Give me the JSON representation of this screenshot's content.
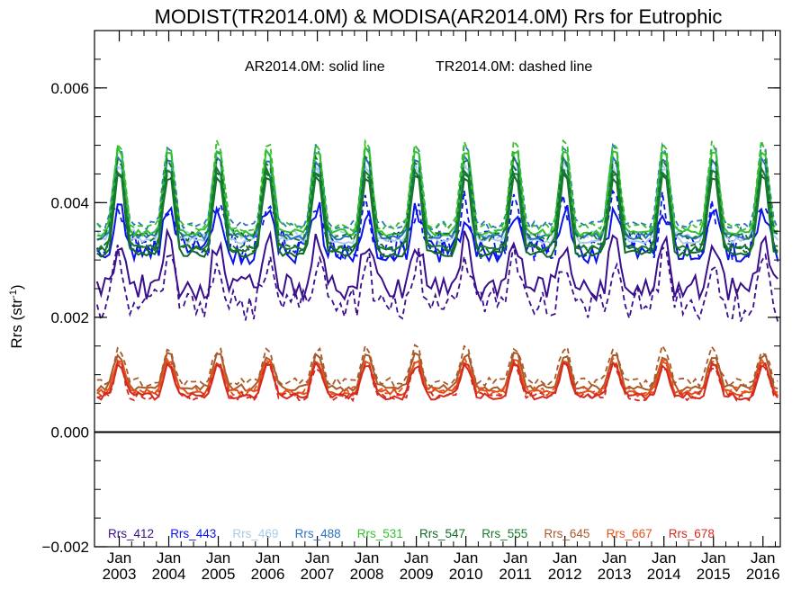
{
  "chart_data": {
    "type": "line",
    "title": "MODIST(TR2014.0M) & MODISA(AR2014.0M)  Rrs for Eutrophic",
    "subtitle_solid": "AR2014.0M: solid line",
    "subtitle_dashed": "TR2014.0M: dashed line",
    "ylabel": "Rrs (str",
    "ylabel_sup": "-1",
    "ylabel_close": ")",
    "ylim": [
      -0.002,
      0.007
    ],
    "xlim": [
      2002.5,
      2016.35
    ],
    "yticks": [
      -0.002,
      0.0,
      0.002,
      0.004,
      0.006
    ],
    "ytick_labels": [
      "−0.002",
      "0.000",
      "0.002",
      "0.004",
      "0.006"
    ],
    "xticks": [
      {
        "year": 2003,
        "line1": "Jan",
        "line2": "2003"
      },
      {
        "year": 2004,
        "line1": "Jan",
        "line2": "2004"
      },
      {
        "year": 2005,
        "line1": "Jan",
        "line2": "2005"
      },
      {
        "year": 2006,
        "line1": "Jan",
        "line2": "2006"
      },
      {
        "year": 2007,
        "line1": "Jan",
        "line2": "2007"
      },
      {
        "year": 2008,
        "line1": "Jan",
        "line2": "2008"
      },
      {
        "year": 2009,
        "line1": "Jan",
        "line2": "2009"
      },
      {
        "year": 2010,
        "line1": "Jan",
        "line2": "2010"
      },
      {
        "year": 2011,
        "line1": "Jan",
        "line2": "2011"
      },
      {
        "year": 2012,
        "line1": "Jan",
        "line2": "2012"
      },
      {
        "year": 2013,
        "line1": "Jan",
        "line2": "2013"
      },
      {
        "year": 2014,
        "line1": "Jan",
        "line2": "2014"
      },
      {
        "year": 2015,
        "line1": "Jan",
        "line2": "2015"
      },
      {
        "year": 2016,
        "line1": "Jan",
        "line2": "2016"
      }
    ],
    "zero_line": 0.0,
    "grid": false,
    "legend_placement": "bottom",
    "series_style": {
      "AR2014.0M": "solid",
      "TR2014.0M": "dashed"
    },
    "bands": [
      {
        "name": "Rrs_412",
        "color": "#3a0f8c",
        "base": 0.0028,
        "amp": 0.0008,
        "tr_offset": -0.0003
      },
      {
        "name": "Rrs_443",
        "color": "#0a14e6",
        "base": 0.0034,
        "amp": 0.0007,
        "tr_offset": 0.0001
      },
      {
        "name": "Rrs_469",
        "color": "#a8cce8",
        "base": 0.0038,
        "amp": 0.0013,
        "tr_offset": 0.0001
      },
      {
        "name": "Rrs_488",
        "color": "#2a73c6",
        "base": 0.0039,
        "amp": 0.0014,
        "tr_offset": 0.0002
      },
      {
        "name": "Rrs_531",
        "color": "#33c12d",
        "base": 0.004,
        "amp": 0.0015,
        "tr_offset": 0.0001
      },
      {
        "name": "Rrs_547",
        "color": "#0e6b27",
        "base": 0.0036,
        "amp": 0.0014,
        "tr_offset": 0.0001
      },
      {
        "name": "Rrs_555",
        "color": "#167a2e",
        "base": 0.0037,
        "amp": 0.0014,
        "tr_offset": 0.0002
      },
      {
        "name": "Rrs_645",
        "color": "#a85a2a",
        "base": 0.00098,
        "amp": 0.0006,
        "tr_offset": 0.0001
      },
      {
        "name": "Rrs_667",
        "color": "#e3531a",
        "base": 0.00088,
        "amp": 0.00055,
        "tr_offset": 2e-05
      },
      {
        "name": "Rrs_678",
        "color": "#d42a22",
        "base": 0.00082,
        "amp": 0.00056,
        "tr_offset": 0.0
      }
    ]
  }
}
